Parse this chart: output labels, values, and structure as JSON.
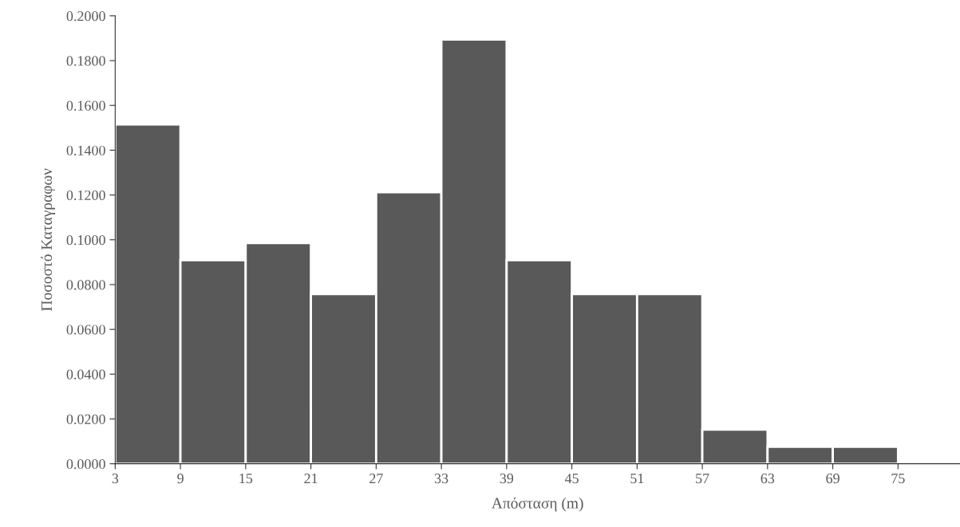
{
  "chart_data": {
    "type": "histogram",
    "xlabel": "Απόσταση (m)",
    "ylabel": "Ποσοστό Καταγραφων",
    "bins": [
      3,
      9,
      15,
      21,
      27,
      33,
      39,
      45,
      51,
      57,
      63,
      69,
      75
    ],
    "values": [
      0.1515,
      0.0909,
      0.0985,
      0.0758,
      0.1212,
      0.1894,
      0.0909,
      0.0758,
      0.0758,
      0.0152,
      0.0076,
      0.0076
    ],
    "color": "#595959",
    "xlim": [
      3,
      80.7
    ],
    "xticks": [
      3,
      9,
      15,
      21,
      27,
      33,
      39,
      45,
      51,
      57,
      63,
      69,
      75
    ],
    "ylim": [
      0,
      0.2
    ],
    "yticks": [
      {
        "value": 0,
        "label": "0.0000"
      },
      {
        "value": 0.02,
        "label": "0.0200"
      },
      {
        "value": 0.04,
        "label": "0.0400"
      },
      {
        "value": 0.06,
        "label": "0.0600"
      },
      {
        "value": 0.08,
        "label": "0.0800"
      },
      {
        "value": 0.1,
        "label": "0.1000"
      },
      {
        "value": 0.12,
        "label": "0.1200"
      },
      {
        "value": 0.14,
        "label": "0.1400"
      },
      {
        "value": 0.16,
        "label": "0.1600"
      },
      {
        "value": 0.18,
        "label": "0.1800"
      },
      {
        "value": 0.2,
        "label": "0.2000"
      }
    ],
    "grid": false
  }
}
